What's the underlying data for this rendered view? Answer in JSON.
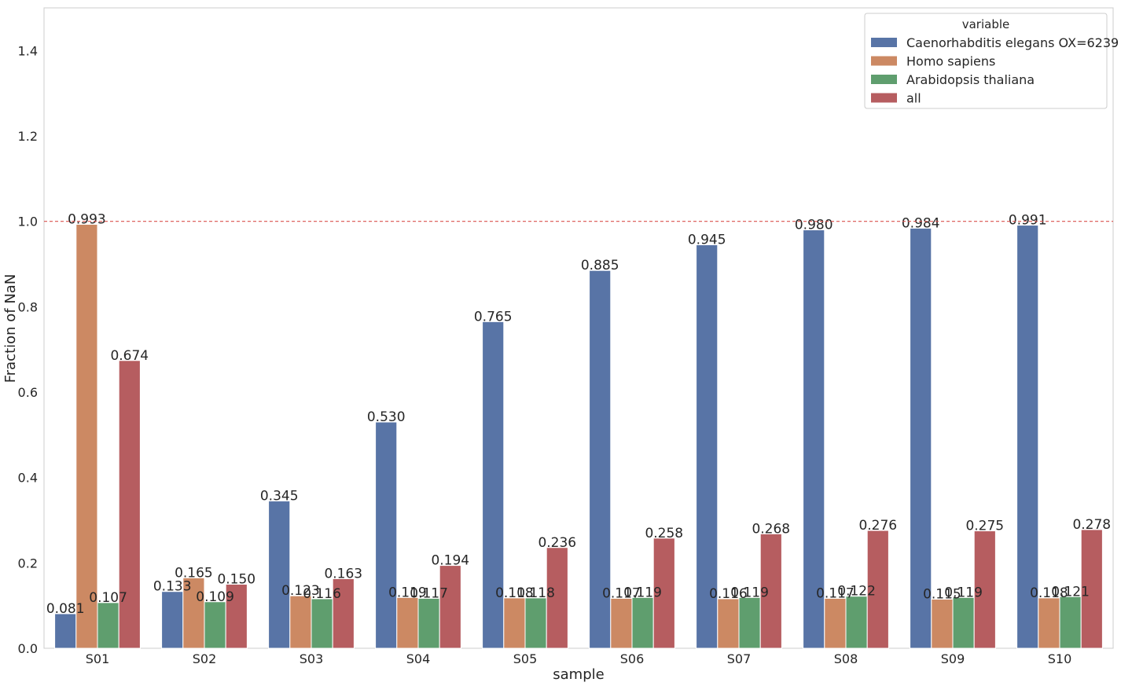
{
  "chart_data": {
    "type": "bar",
    "title": "",
    "xlabel": "sample",
    "ylabel": "Fraction of NaN",
    "ylim": [
      0,
      1.5
    ],
    "yticks": [
      "0.0",
      "0.2",
      "0.4",
      "0.6",
      "0.8",
      "1.0",
      "1.2",
      "1.4"
    ],
    "grid": false,
    "reference_line": {
      "y": 1.0,
      "style": "dashed",
      "color": "#d9534f"
    },
    "legend": {
      "title": "variable",
      "position": "top-right"
    },
    "categories": [
      "S01",
      "S02",
      "S03",
      "S04",
      "S05",
      "S06",
      "S07",
      "S08",
      "S09",
      "S10"
    ],
    "series": [
      {
        "name": "Caenorhabditis elegans OX=6239",
        "color": "#5874a6",
        "values": [
          0.081,
          0.133,
          0.345,
          0.53,
          0.765,
          0.885,
          0.945,
          0.98,
          0.984,
          0.991
        ],
        "labels": [
          "0.081",
          "0.133",
          "0.345",
          "0.530",
          "0.765",
          "0.885",
          "0.945",
          "0.980",
          "0.984",
          "0.991"
        ]
      },
      {
        "name": "Homo sapiens",
        "color": "#cc8963",
        "values": [
          0.993,
          0.165,
          0.123,
          0.119,
          0.118,
          0.117,
          0.116,
          0.117,
          0.115,
          0.118
        ],
        "labels": [
          "0.993",
          "0.165",
          "0.123",
          "0.119",
          "0.118",
          "0.117",
          "0.116",
          "0.117",
          "0.115",
          "0.118"
        ]
      },
      {
        "name": "Arabidopsis thaliana",
        "color": "#5f9e6e",
        "values": [
          0.107,
          0.109,
          0.116,
          0.117,
          0.118,
          0.119,
          0.119,
          0.122,
          0.119,
          0.121
        ],
        "labels": [
          "0.107",
          "0.109",
          "0.116",
          "0.117",
          "0.118",
          "0.119",
          "0.119",
          "0.122",
          "0.119",
          "0.121"
        ]
      },
      {
        "name": "all",
        "color": "#b65d60",
        "values": [
          0.674,
          0.15,
          0.163,
          0.194,
          0.236,
          0.258,
          0.268,
          0.276,
          0.275,
          0.278
        ],
        "labels": [
          "0.674",
          "0.150",
          "0.163",
          "0.194",
          "0.236",
          "0.258",
          "0.268",
          "0.276",
          "0.275",
          "0.278"
        ]
      }
    ]
  }
}
